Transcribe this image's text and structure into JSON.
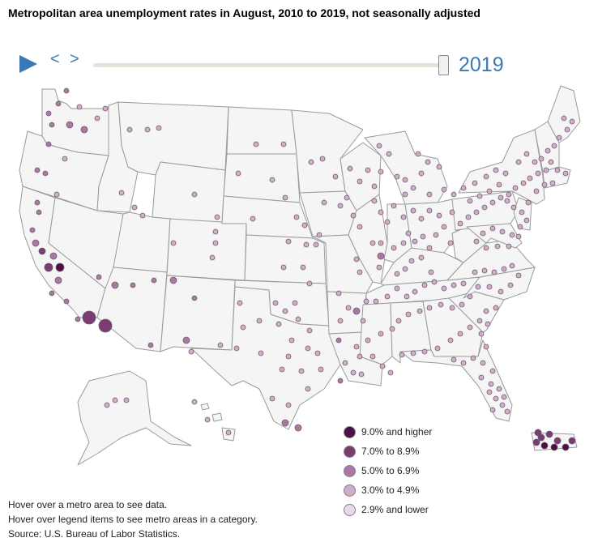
{
  "title": "Metropolitan area unemployment rates in August, 2010 to 2019, not seasonally adjusted",
  "controls": {
    "play_icon": "play-triangle",
    "prev_label": "<",
    "next_label": ">",
    "year": "2019",
    "slider_position": 1.0
  },
  "colors": {
    "accent": "#3a79b6",
    "state_fill": "#f5f5f5",
    "state_stroke": "#9a9a9a",
    "dot_stroke": "#6e5a6e"
  },
  "legend": [
    {
      "label": "9.0% and higher",
      "color": "#4d0f45",
      "category": "9+"
    },
    {
      "label": "7.0% to 8.9%",
      "color": "#7a3d72",
      "category": "7-8.9"
    },
    {
      "label": "5.0% to 6.9%",
      "color": "#a97aa1",
      "category": "5-6.9"
    },
    {
      "label": "3.0% to 4.9%",
      "color": "#d0aecb",
      "category": "3-4.9"
    },
    {
      "label": "2.9% and lower",
      "color": "#ead8e7",
      "category": "<2.9"
    }
  ],
  "notes": [
    "Hover over a metro area to see data.",
    "Hover over legend items to see metro areas in a category.",
    "Source: U.S. Bureau of Labor Statistics."
  ]
}
